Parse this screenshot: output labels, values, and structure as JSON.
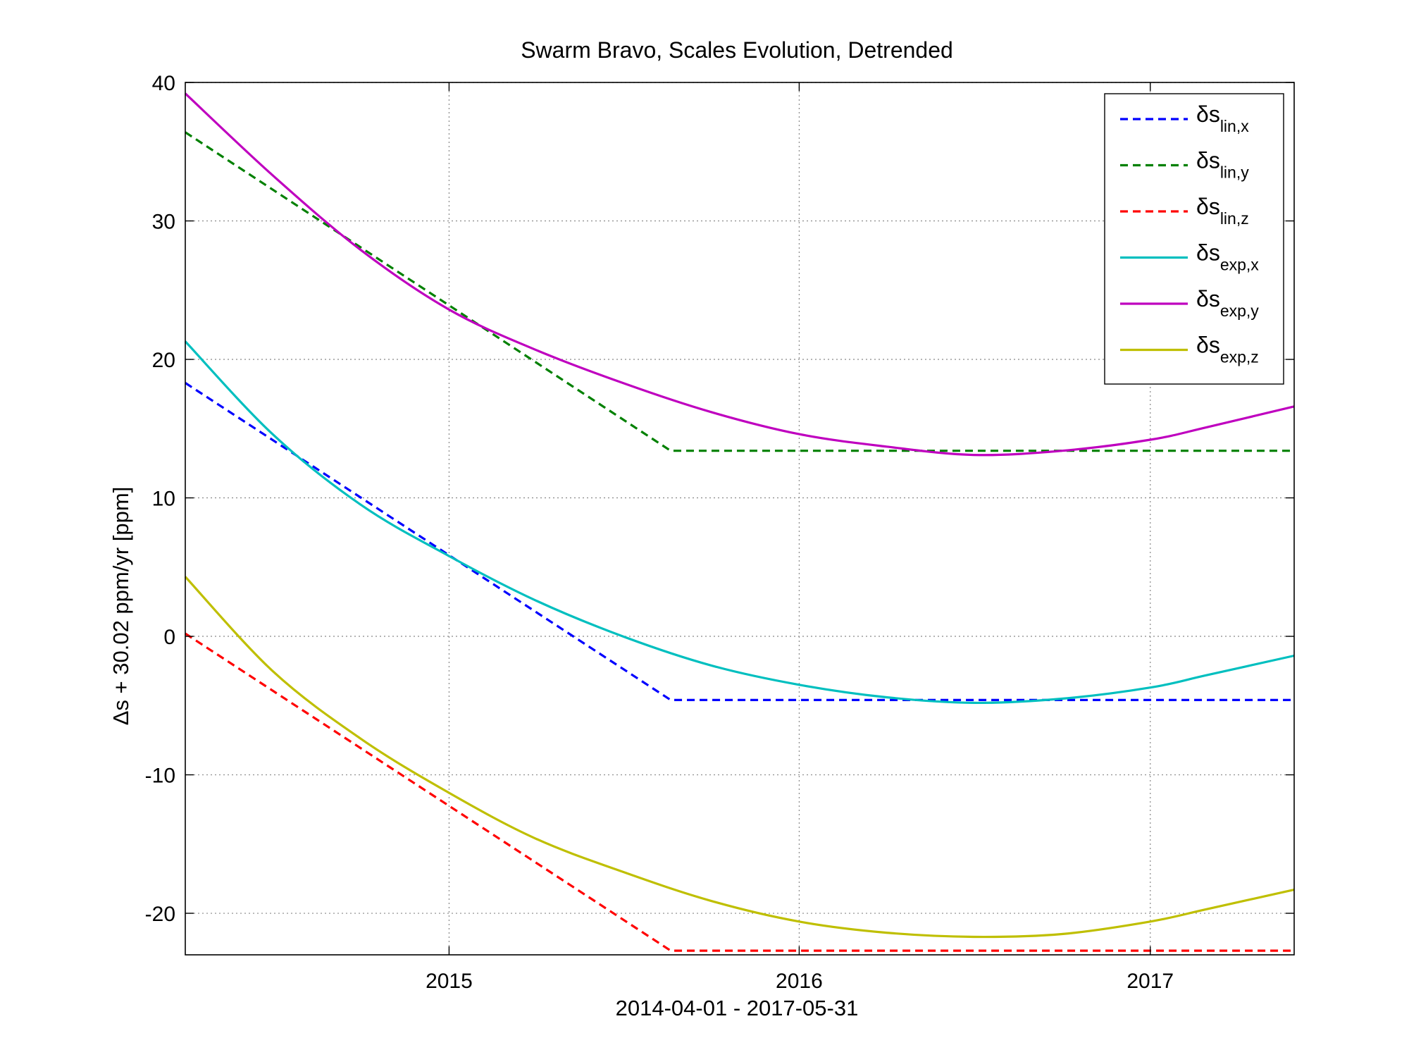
{
  "chart_data": {
    "type": "line",
    "title": "Swarm Bravo, Scales Evolution, Detrended",
    "xlabel": "2014-04-01 - 2017-05-31",
    "ylabel": "Δs + 30.02 ppm/yr [ppm]",
    "xlim": [
      "2014-04-01",
      "2017-05-31"
    ],
    "ylim": [
      -23,
      40
    ],
    "x_ticks": [
      {
        "date": "2015-01-01",
        "label": "2015"
      },
      {
        "date": "2016-01-01",
        "label": "2016"
      },
      {
        "date": "2017-01-01",
        "label": "2017"
      }
    ],
    "y_ticks": [
      {
        "value": 40,
        "label": "40"
      },
      {
        "value": 30,
        "label": "30"
      },
      {
        "value": 20,
        "label": "20"
      },
      {
        "value": 10,
        "label": "10"
      },
      {
        "value": 0,
        "label": "0"
      },
      {
        "value": -10,
        "label": "-10"
      },
      {
        "value": -20,
        "label": "-20"
      }
    ],
    "grid": true,
    "legend_position": "top-right",
    "series": [
      {
        "name": "δs",
        "sub": "lin,x",
        "color": "#0000ff",
        "dashed": true,
        "points": [
          [
            "2014-04-01",
            18.3
          ],
          [
            "2015-08-20",
            -4.6
          ],
          [
            "2017-05-31",
            -4.6
          ]
        ]
      },
      {
        "name": "δs",
        "sub": "lin,y",
        "color": "#008000",
        "dashed": true,
        "points": [
          [
            "2014-04-01",
            36.4
          ],
          [
            "2015-08-20",
            13.4
          ],
          [
            "2017-05-31",
            13.4
          ]
        ]
      },
      {
        "name": "δs",
        "sub": "lin,z",
        "color": "#ff0000",
        "dashed": true,
        "points": [
          [
            "2014-04-01",
            0.2
          ],
          [
            "2015-08-20",
            -22.7
          ],
          [
            "2017-05-31",
            -22.7
          ]
        ]
      },
      {
        "name": "δs",
        "sub": "exp,x",
        "color": "#00bfbf",
        "dashed": false,
        "points": [
          [
            "2014-04-01",
            21.3
          ],
          [
            "2014-07-01",
            14.6
          ],
          [
            "2014-10-01",
            9.5
          ],
          [
            "2015-01-01",
            5.8
          ],
          [
            "2015-04-01",
            2.6
          ],
          [
            "2015-07-01",
            0.0
          ],
          [
            "2015-10-01",
            -2.1
          ],
          [
            "2016-01-01",
            -3.5
          ],
          [
            "2016-04-01",
            -4.4
          ],
          [
            "2016-07-01",
            -4.8
          ],
          [
            "2016-10-01",
            -4.5
          ],
          [
            "2017-01-01",
            -3.7
          ],
          [
            "2017-03-01",
            -2.8
          ],
          [
            "2017-05-31",
            -1.4
          ]
        ]
      },
      {
        "name": "δs",
        "sub": "exp,y",
        "color": "#bf00bf",
        "dashed": false,
        "points": [
          [
            "2014-04-01",
            39.2
          ],
          [
            "2014-07-01",
            33.3
          ],
          [
            "2014-10-01",
            27.9
          ],
          [
            "2015-01-01",
            23.6
          ],
          [
            "2015-04-01",
            20.7
          ],
          [
            "2015-07-01",
            18.3
          ],
          [
            "2015-10-01",
            16.2
          ],
          [
            "2016-01-01",
            14.6
          ],
          [
            "2016-04-01",
            13.7
          ],
          [
            "2016-07-01",
            13.1
          ],
          [
            "2016-10-01",
            13.4
          ],
          [
            "2017-01-01",
            14.2
          ],
          [
            "2017-03-01",
            15.1
          ],
          [
            "2017-05-31",
            16.6
          ]
        ]
      },
      {
        "name": "δs",
        "sub": "exp,z",
        "color": "#bfbf00",
        "dashed": false,
        "points": [
          [
            "2014-04-01",
            4.3
          ],
          [
            "2014-07-01",
            -2.5
          ],
          [
            "2014-10-01",
            -7.4
          ],
          [
            "2015-01-01",
            -11.3
          ],
          [
            "2015-04-01",
            -14.6
          ],
          [
            "2015-07-01",
            -17.0
          ],
          [
            "2015-10-01",
            -19.1
          ],
          [
            "2016-01-01",
            -20.6
          ],
          [
            "2016-04-01",
            -21.4
          ],
          [
            "2016-07-01",
            -21.7
          ],
          [
            "2016-10-01",
            -21.5
          ],
          [
            "2017-01-01",
            -20.6
          ],
          [
            "2017-03-01",
            -19.7
          ],
          [
            "2017-05-31",
            -18.3
          ]
        ]
      }
    ]
  }
}
